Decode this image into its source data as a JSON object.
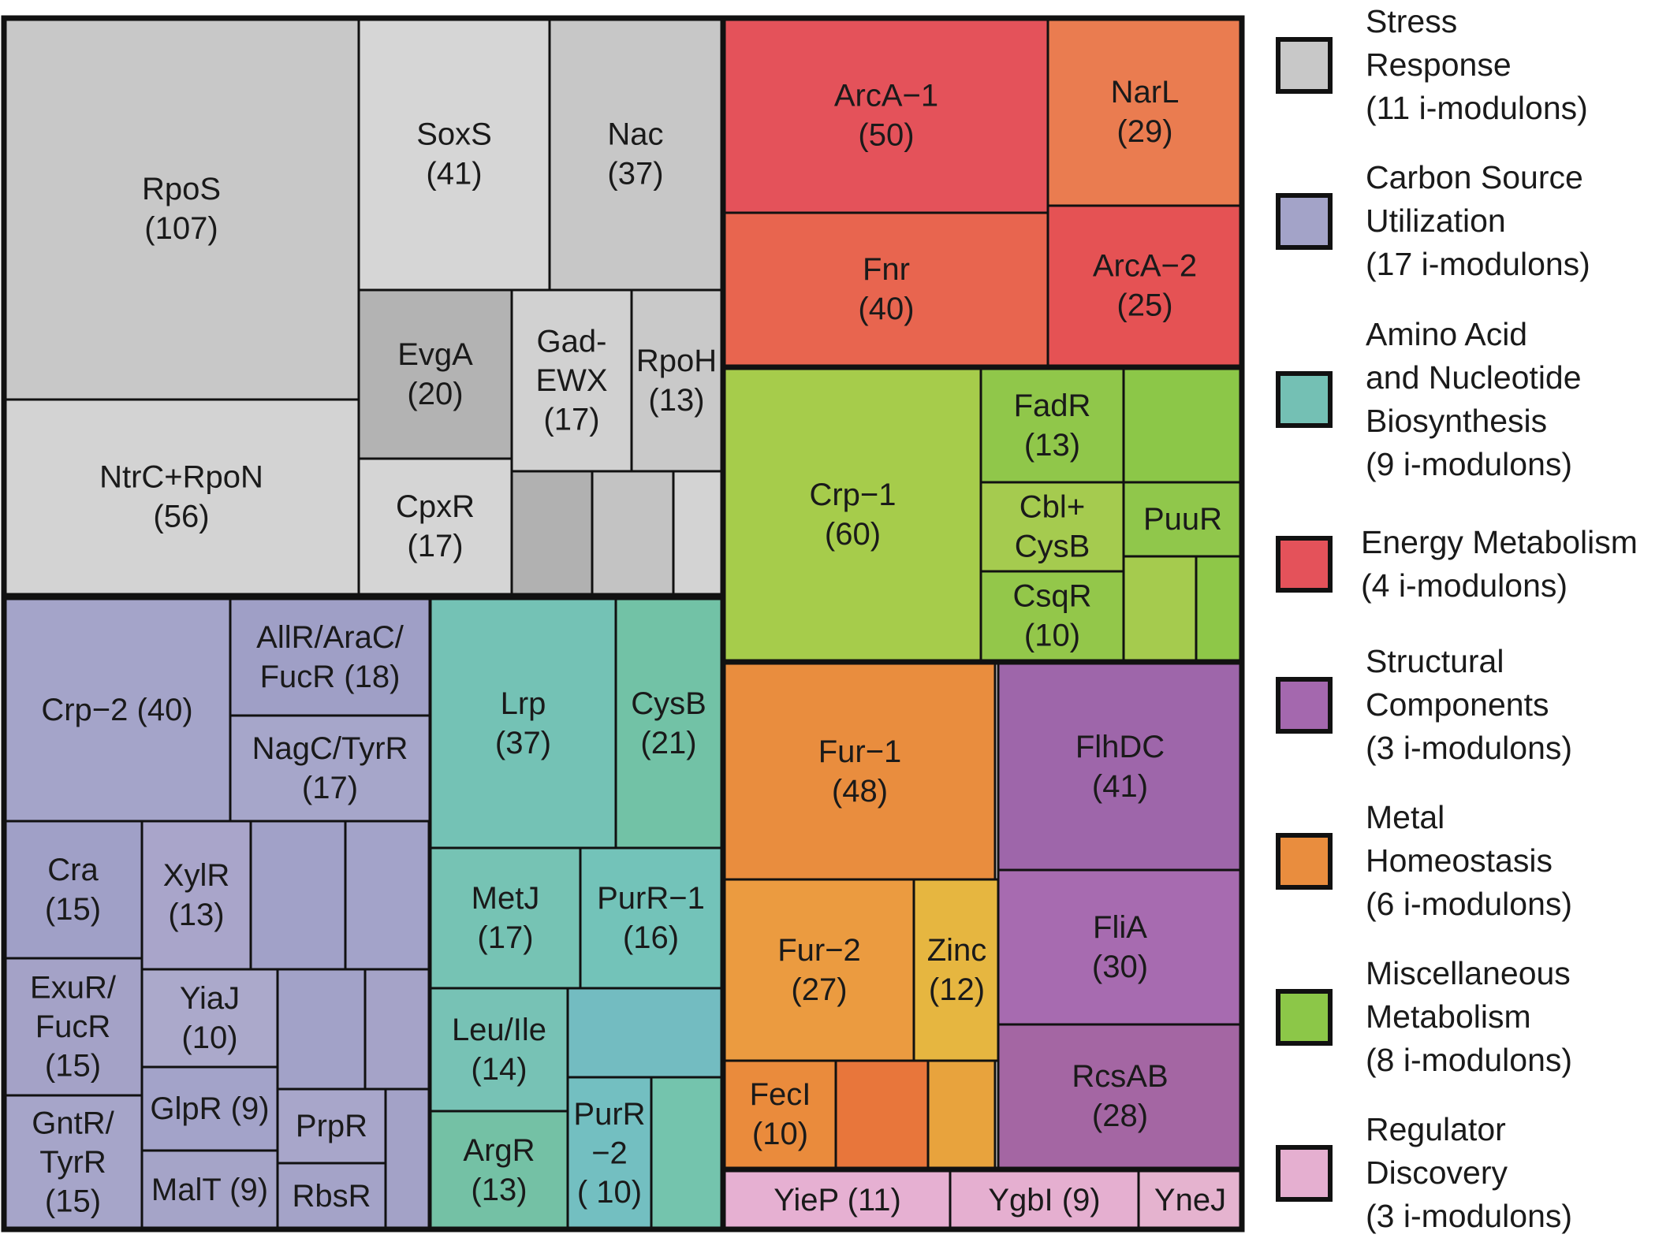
{
  "chart_data": {
    "type": "treemap",
    "categories": [
      {
        "id": "stress",
        "lines": [
          "Stress",
          "Response",
          "(11 i-modulons)"
        ],
        "color": "#c8c8c8"
      },
      {
        "id": "carbon",
        "lines": [
          "Carbon Source",
          "Utilization",
          "(17 i-modulons)"
        ],
        "color": "#a3a3c8"
      },
      {
        "id": "amino",
        "lines": [
          "Amino Acid",
          "and Nucleotide",
          "Biosynthesis",
          "(9 i-modulons)"
        ],
        "color": "#74c0b4"
      },
      {
        "id": "energy",
        "lines": [
          "Energy Metabolism",
          "(4 i-modulons)"
        ],
        "color": "#e4525a"
      },
      {
        "id": "structural",
        "lines": [
          "Structural",
          "Components",
          "(3 i-modulons)"
        ],
        "color": "#a468ae"
      },
      {
        "id": "metal",
        "lines": [
          "Metal",
          "Homeostasis",
          "(6 i-modulons)"
        ],
        "color": "#e98d3e"
      },
      {
        "id": "misc",
        "lines": [
          "Miscellaneous",
          "Metabolism",
          "(8 i-modulons)"
        ],
        "color": "#8cc748"
      },
      {
        "id": "regulator",
        "lines": [
          "Regulator",
          "Discovery",
          "(3 i-modulons)"
        ],
        "color": "#e5afd0"
      }
    ],
    "imodulons": [
      {
        "category": "stress",
        "label": [
          "RpoS",
          "(107)"
        ],
        "color": "#c8c8c8"
      },
      {
        "category": "stress",
        "label": [
          "NtrC+RpoN",
          "(56)"
        ],
        "color": "#d3d3d3"
      },
      {
        "category": "stress",
        "label": [
          "SoxS",
          "(41)"
        ],
        "color": "#d6d6d6"
      },
      {
        "category": "stress",
        "label": [
          "Nac",
          "(37)"
        ],
        "color": "#c7c7c7"
      },
      {
        "category": "stress",
        "label": [
          "EvgA",
          "(20)"
        ],
        "color": "#b3b3b3"
      },
      {
        "category": "stress",
        "label": [
          "Gad-",
          "EWX",
          "(17)"
        ],
        "color": "#d1d1d1"
      },
      {
        "category": "stress",
        "label": [
          "RpoH",
          "(13)"
        ],
        "color": "#c9c9c9"
      },
      {
        "category": "stress",
        "label": [
          "CpxR",
          "(17)"
        ],
        "color": "#d5d5d5"
      },
      {
        "category": "stress",
        "label": [],
        "color": "#b1b1b1"
      },
      {
        "category": "stress",
        "label": [],
        "color": "#c3c3c3"
      },
      {
        "category": "stress",
        "label": [],
        "color": "#d3d3d3"
      },
      {
        "category": "carbon",
        "label": [
          "Crp−2 (40)"
        ],
        "color": "#a4a4c9"
      },
      {
        "category": "carbon",
        "label": [
          "AllR/AraC/",
          "FucR (18)"
        ],
        "color": "#9f9fc6"
      },
      {
        "category": "carbon",
        "label": [
          "NagC/TyrR",
          "(17)"
        ],
        "color": "#a6a6ca"
      },
      {
        "category": "carbon",
        "label": [
          "Cra",
          "(15)"
        ],
        "color": "#a0a0c7"
      },
      {
        "category": "carbon",
        "label": [
          "XylR",
          "(13)"
        ],
        "color": "#a9a5ca"
      },
      {
        "category": "carbon",
        "label": [],
        "color": "#a1a1c8"
      },
      {
        "category": "carbon",
        "label": [],
        "color": "#a3a3c9"
      },
      {
        "category": "carbon",
        "label": [
          "ExuR/",
          "FucR",
          "(15)"
        ],
        "color": "#a4a2c7"
      },
      {
        "category": "carbon",
        "label": [
          "YiaJ",
          "(10)"
        ],
        "color": "#aba9cb"
      },
      {
        "category": "carbon",
        "label": [],
        "color": "#a2a2c8"
      },
      {
        "category": "carbon",
        "label": [],
        "color": "#a5a3c8"
      },
      {
        "category": "carbon",
        "label": [
          "GntR/",
          "TyrR",
          "(15)"
        ],
        "color": "#a6a5c9"
      },
      {
        "category": "carbon",
        "label": [
          "GlpR (9)"
        ],
        "color": "#a3a3c9"
      },
      {
        "category": "carbon",
        "label": [
          "MalT (9)"
        ],
        "color": "#a5a4c8"
      },
      {
        "category": "carbon",
        "label": [
          "PrpR"
        ],
        "color": "#a8a6ca"
      },
      {
        "category": "carbon",
        "label": [
          "RbsR"
        ],
        "color": "#a4a3c8"
      },
      {
        "category": "carbon",
        "label": [],
        "color": "#a3a2c7"
      },
      {
        "category": "amino",
        "label": [
          "Lrp",
          "(37)"
        ],
        "color": "#74c2b5"
      },
      {
        "category": "amino",
        "label": [
          "CysB",
          "(21)"
        ],
        "color": "#72c2a6"
      },
      {
        "category": "amino",
        "label": [
          "MetJ",
          "(17)"
        ],
        "color": "#76c3b4"
      },
      {
        "category": "amino",
        "label": [
          "PurR−1",
          "(16)"
        ],
        "color": "#73c3b9"
      },
      {
        "category": "amino",
        "label": [
          "Leu/Ile",
          "(14)"
        ],
        "color": "#77c2b5"
      },
      {
        "category": "amino",
        "label": [],
        "color": "#73bcc1"
      },
      {
        "category": "amino",
        "label": [
          "ArgR",
          "(13)"
        ],
        "color": "#74c1a5"
      },
      {
        "category": "amino",
        "label": [
          "PurR",
          "−2",
          "( 10)"
        ],
        "color": "#73bfc1"
      },
      {
        "category": "amino",
        "label": [],
        "color": "#74c4ad"
      },
      {
        "category": "energy",
        "label": [
          "ArcA−1",
          "(50)"
        ],
        "color": "#e4525a"
      },
      {
        "category": "energy",
        "label": [
          "NarL",
          "(29)"
        ],
        "color": "#ea7c50"
      },
      {
        "category": "energy",
        "label": [
          "Fnr",
          "(40)"
        ],
        "color": "#e8654f"
      },
      {
        "category": "energy",
        "label": [
          "ArcA−2",
          "(25)"
        ],
        "color": "#e55254"
      },
      {
        "category": "misc",
        "label": [
          "Crp−1",
          "(60)"
        ],
        "color": "#a6cc4b"
      },
      {
        "category": "misc",
        "label": [
          "FadR",
          "(13)"
        ],
        "color": "#90c74a"
      },
      {
        "category": "misc",
        "label": [],
        "color": "#8cc748"
      },
      {
        "category": "misc",
        "label": [
          "Cbl+",
          "CysB"
        ],
        "color": "#a5cb4f"
      },
      {
        "category": "misc",
        "label": [
          "PuuR"
        ],
        "color": "#90c74b"
      },
      {
        "category": "misc",
        "label": [
          "CsqR",
          "(10)"
        ],
        "color": "#93c74a"
      },
      {
        "category": "misc",
        "label": [],
        "color": "#a5cb4e"
      },
      {
        "category": "misc",
        "label": [],
        "color": "#8ec748"
      },
      {
        "category": "metal",
        "label": [
          "Fur−1",
          "(48)"
        ],
        "color": "#e98d3e"
      },
      {
        "category": "metal",
        "label": [
          "Fur−2",
          "(27)"
        ],
        "color": "#eb9b40"
      },
      {
        "category": "metal",
        "label": [
          "Zinc",
          "(12)"
        ],
        "color": "#e6b640"
      },
      {
        "category": "metal",
        "label": [
          "FecI",
          "(10)"
        ],
        "color": "#ea8b3c"
      },
      {
        "category": "metal",
        "label": [],
        "color": "#e8763b"
      },
      {
        "category": "metal",
        "label": [],
        "color": "#e8a33d"
      },
      {
        "category": "structural",
        "label": [
          "FlhDC",
          "(41)"
        ],
        "color": "#9e66aa"
      },
      {
        "category": "structural",
        "label": [
          "FliA",
          "(30)"
        ],
        "color": "#a76bb0"
      },
      {
        "category": "structural",
        "label": [
          "RcsAB",
          "(28)"
        ],
        "color": "#a466a3"
      },
      {
        "category": "regulator",
        "label": [
          "YieP (11)"
        ],
        "color": "#e6b0d2"
      },
      {
        "category": "regulator",
        "label": [
          "YgbI (9)"
        ],
        "color": "#e5afd0"
      },
      {
        "category": "regulator",
        "label": [
          "YneJ"
        ],
        "color": "#e5b3cf"
      }
    ]
  }
}
